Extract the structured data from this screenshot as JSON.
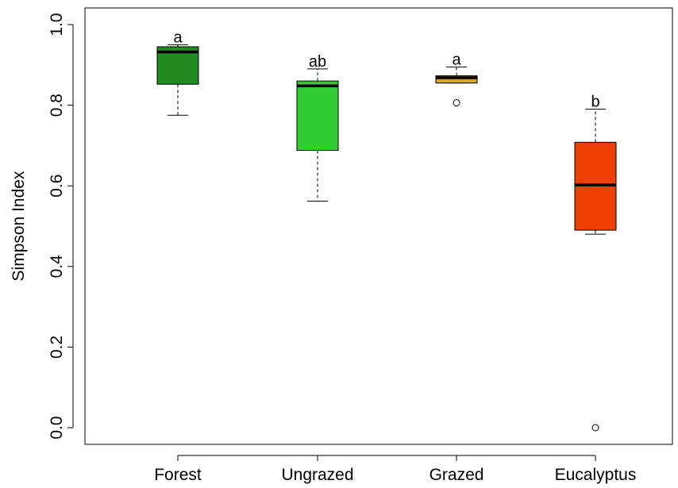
{
  "chart_data": {
    "type": "box",
    "ylabel": "Simpson Index",
    "ylim": [
      -0.05,
      1.03
    ],
    "yticks": [
      0.0,
      0.2,
      0.4,
      0.6,
      0.8,
      1.0
    ],
    "ytick_labels": [
      "0.0",
      "0.2",
      "0.4",
      "0.6",
      "0.8",
      "1.0"
    ],
    "categories": [
      "Forest",
      "Ungrazed",
      "Grazed",
      "Eucalyptus"
    ],
    "boxes": [
      {
        "category": "Forest",
        "min": 0.775,
        "q1": 0.852,
        "median": 0.932,
        "q3": 0.945,
        "max": 0.95,
        "outliers": [],
        "letter": "a",
        "color": "#228b22"
      },
      {
        "category": "Ungrazed",
        "min": 0.562,
        "q1": 0.688,
        "median": 0.848,
        "q3": 0.86,
        "max": 0.89,
        "outliers": [],
        "letter": "ab",
        "color": "#32cd32"
      },
      {
        "category": "Grazed",
        "min": 0.855,
        "q1": 0.855,
        "median": 0.868,
        "q3": 0.873,
        "max": 0.895,
        "outliers": [
          0.806
        ],
        "letter": "a",
        "color": "#daa520"
      },
      {
        "category": "Eucalyptus",
        "min": 0.48,
        "q1": 0.49,
        "median": 0.602,
        "q3": 0.708,
        "max": 0.79,
        "outliers": [
          0.0
        ],
        "letter": "b",
        "color": "#ee4000"
      }
    ],
    "grid": false,
    "legend": "none"
  }
}
